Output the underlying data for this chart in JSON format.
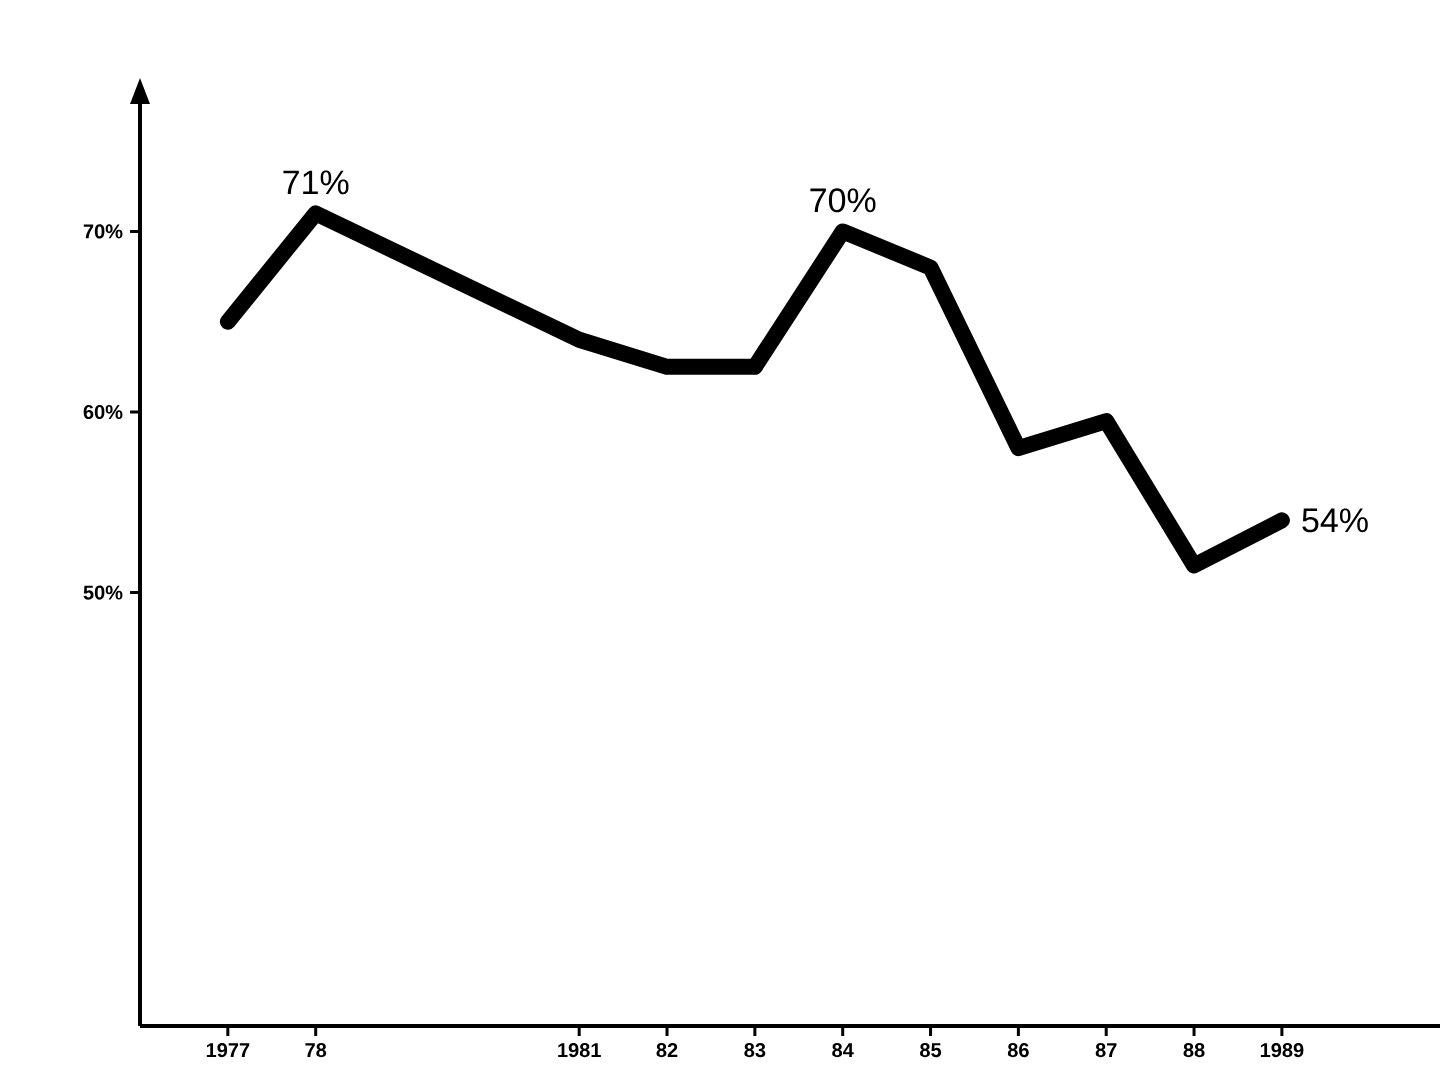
{
  "chart_data": {
    "type": "line",
    "x": [
      1977,
      1978,
      1981,
      1982,
      1983,
      1984,
      1985,
      1986,
      1987,
      1988,
      1989
    ],
    "series": [
      {
        "color": "#000000",
        "values": [
          65,
          71,
          64,
          62.5,
          62.5,
          70,
          68,
          58,
          59.5,
          51.5,
          54
        ],
        "value_labels": [
          null,
          "71%",
          null,
          null,
          null,
          "70%",
          null,
          null,
          null,
          null,
          "54%"
        ]
      }
    ],
    "xlim": [
      1976,
      1990.8
    ],
    "ylim": [
      26,
      77.5
    ],
    "xticks": [
      {
        "value": 1977,
        "label": "1977"
      },
      {
        "value": 1978,
        "label": "78"
      },
      {
        "value": 1981,
        "label": "1981"
      },
      {
        "value": 1982,
        "label": "82"
      },
      {
        "value": 1983,
        "label": "83"
      },
      {
        "value": 1984,
        "label": "84"
      },
      {
        "value": 1985,
        "label": "85"
      },
      {
        "value": 1986,
        "label": "86"
      },
      {
        "value": 1987,
        "label": "87"
      },
      {
        "value": 1988,
        "label": "88"
      },
      {
        "value": 1989,
        "label": "1989"
      }
    ],
    "yticks": [
      {
        "value": 50,
        "label": "50%"
      },
      {
        "value": 60,
        "label": "60%"
      },
      {
        "value": 70,
        "label": "70%"
      }
    ],
    "marker": "none",
    "line_style": "solid"
  }
}
